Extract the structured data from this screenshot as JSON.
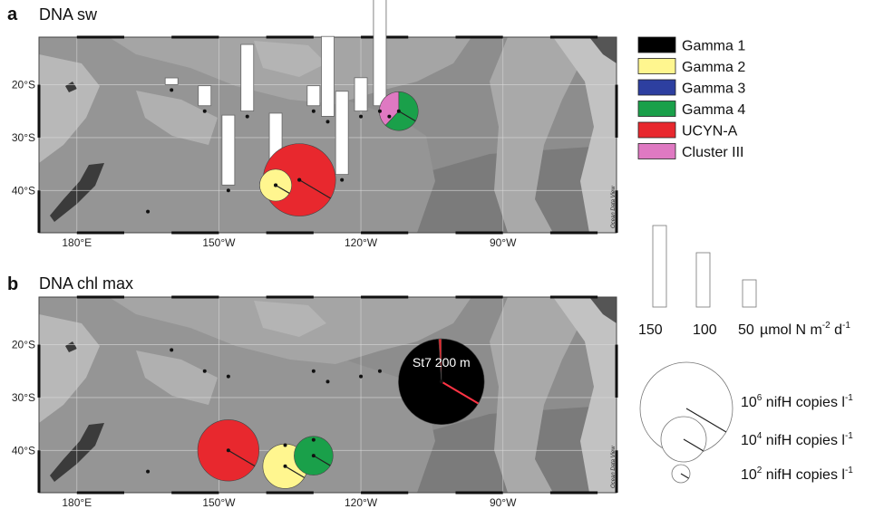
{
  "panels": [
    {
      "letter": "a",
      "title": "DNA sw",
      "lat_labels": [
        "20°S",
        "30°S",
        "40°S"
      ],
      "lon_labels": [
        "180°E",
        "150°W",
        "120°W",
        "90°W"
      ],
      "credit": "Ocean Data View",
      "stations": [
        {
          "lon": -165,
          "lat": -44,
          "bar": null
        },
        {
          "lon": -160,
          "lat": -21,
          "bar": 10
        },
        {
          "lon": -153,
          "lat": -25,
          "bar": 30
        },
        {
          "lon": -148,
          "lat": -40,
          "bar": 105
        },
        {
          "lon": -144,
          "lat": -26,
          "bar": 100
        },
        {
          "lon": -138,
          "lat": -39,
          "bar": 100
        },
        {
          "lon": -133,
          "lat": -38,
          "bar": null
        },
        {
          "lon": -130,
          "lat": -25,
          "bar": 30
        },
        {
          "lon": -127,
          "lat": -27,
          "bar": 120
        },
        {
          "lon": -124,
          "lat": -38,
          "bar": 125
        },
        {
          "lon": -120,
          "lat": -26,
          "bar": 50
        },
        {
          "lon": -116,
          "lat": -25,
          "bar": 165
        },
        {
          "lon": -114,
          "lat": -26,
          "bar": null
        }
      ],
      "pies": [
        {
          "lon": -133,
          "lat": -38,
          "magnitude": 6.0,
          "slices": [
            {
              "group": "UCYN-A",
              "fraction": 1.0
            }
          ]
        },
        {
          "lon": -138,
          "lat": -39,
          "magnitude": 3.3,
          "slices": [
            {
              "group": "Gamma 2",
              "fraction": 1.0
            }
          ]
        },
        {
          "lon": -112,
          "lat": -25,
          "magnitude": 3.8,
          "slices": [
            {
              "group": "Gamma 4",
              "fraction": 0.62
            },
            {
              "group": "Cluster III",
              "fraction": 0.38
            }
          ]
        }
      ]
    },
    {
      "letter": "b",
      "title": "DNA chl max",
      "lat_labels": [
        "20°S",
        "30°S",
        "40°S"
      ],
      "lon_labels": [
        "180°E",
        "150°W",
        "120°W",
        "90°W"
      ],
      "credit": "Ocean Data View",
      "stations": [
        {
          "lon": -165,
          "lat": -44,
          "bar": null
        },
        {
          "lon": -160,
          "lat": -21,
          "bar": null
        },
        {
          "lon": -153,
          "lat": -25,
          "bar": null
        },
        {
          "lon": -148,
          "lat": -26,
          "bar": null
        },
        {
          "lon": -136,
          "lat": -39,
          "bar": null
        },
        {
          "lon": -130,
          "lat": -25,
          "bar": null
        },
        {
          "lon": -130,
          "lat": -38,
          "bar": null
        },
        {
          "lon": -127,
          "lat": -27,
          "bar": null
        },
        {
          "lon": -120,
          "lat": -26,
          "bar": null
        },
        {
          "lon": -116,
          "lat": -25,
          "bar": null
        }
      ],
      "pies": [
        {
          "lon": -103,
          "lat": -27,
          "magnitude": 6.8,
          "slices": [
            {
              "group": "Gamma 1",
              "fraction": 0.99
            },
            {
              "group": "UCYN-A",
              "fraction": 0.01
            }
          ],
          "label": "St7 200 m"
        },
        {
          "lon": -148,
          "lat": -40,
          "magnitude": 5.3,
          "slices": [
            {
              "group": "UCYN-A",
              "fraction": 1.0
            }
          ]
        },
        {
          "lon": -136,
          "lat": -43,
          "magnitude": 4.2,
          "slices": [
            {
              "group": "Gamma 2",
              "fraction": 1.0
            }
          ]
        },
        {
          "lon": -130,
          "lat": -41,
          "magnitude": 3.8,
          "slices": [
            {
              "group": "Gamma 4",
              "fraction": 1.0
            }
          ]
        }
      ]
    }
  ],
  "legend": [
    {
      "name": "Gamma 1",
      "color": "#000000"
    },
    {
      "name": "Gamma 2",
      "color": "#fff68f"
    },
    {
      "name": "Gamma 3",
      "color": "#2d3fa0"
    },
    {
      "name": "Gamma 4",
      "color": "#1aa04a"
    },
    {
      "name": "UCYN-A",
      "color": "#e8282e"
    },
    {
      "name": "Cluster III",
      "color": "#df79c2"
    }
  ],
  "bar_scale": {
    "values": [
      150,
      100,
      50
    ],
    "value_labels": [
      "150",
      "100",
      "50"
    ],
    "unit_main": "µmol N m",
    "unit_exp": "-2",
    "unit_tail": " d",
    "unit_tail_exp": "-1"
  },
  "circle_scale": [
    {
      "base": "10",
      "exp": "6",
      "text": " nifH copies l",
      "unit_exp": "-1",
      "magnitude": 6
    },
    {
      "base": "10",
      "exp": "4",
      "text": " nifH copies l",
      "unit_exp": "-1",
      "magnitude": 4
    },
    {
      "base": "10",
      "exp": "2",
      "text": " nifH copies l",
      "unit_exp": "-1",
      "magnitude": 2
    }
  ]
}
